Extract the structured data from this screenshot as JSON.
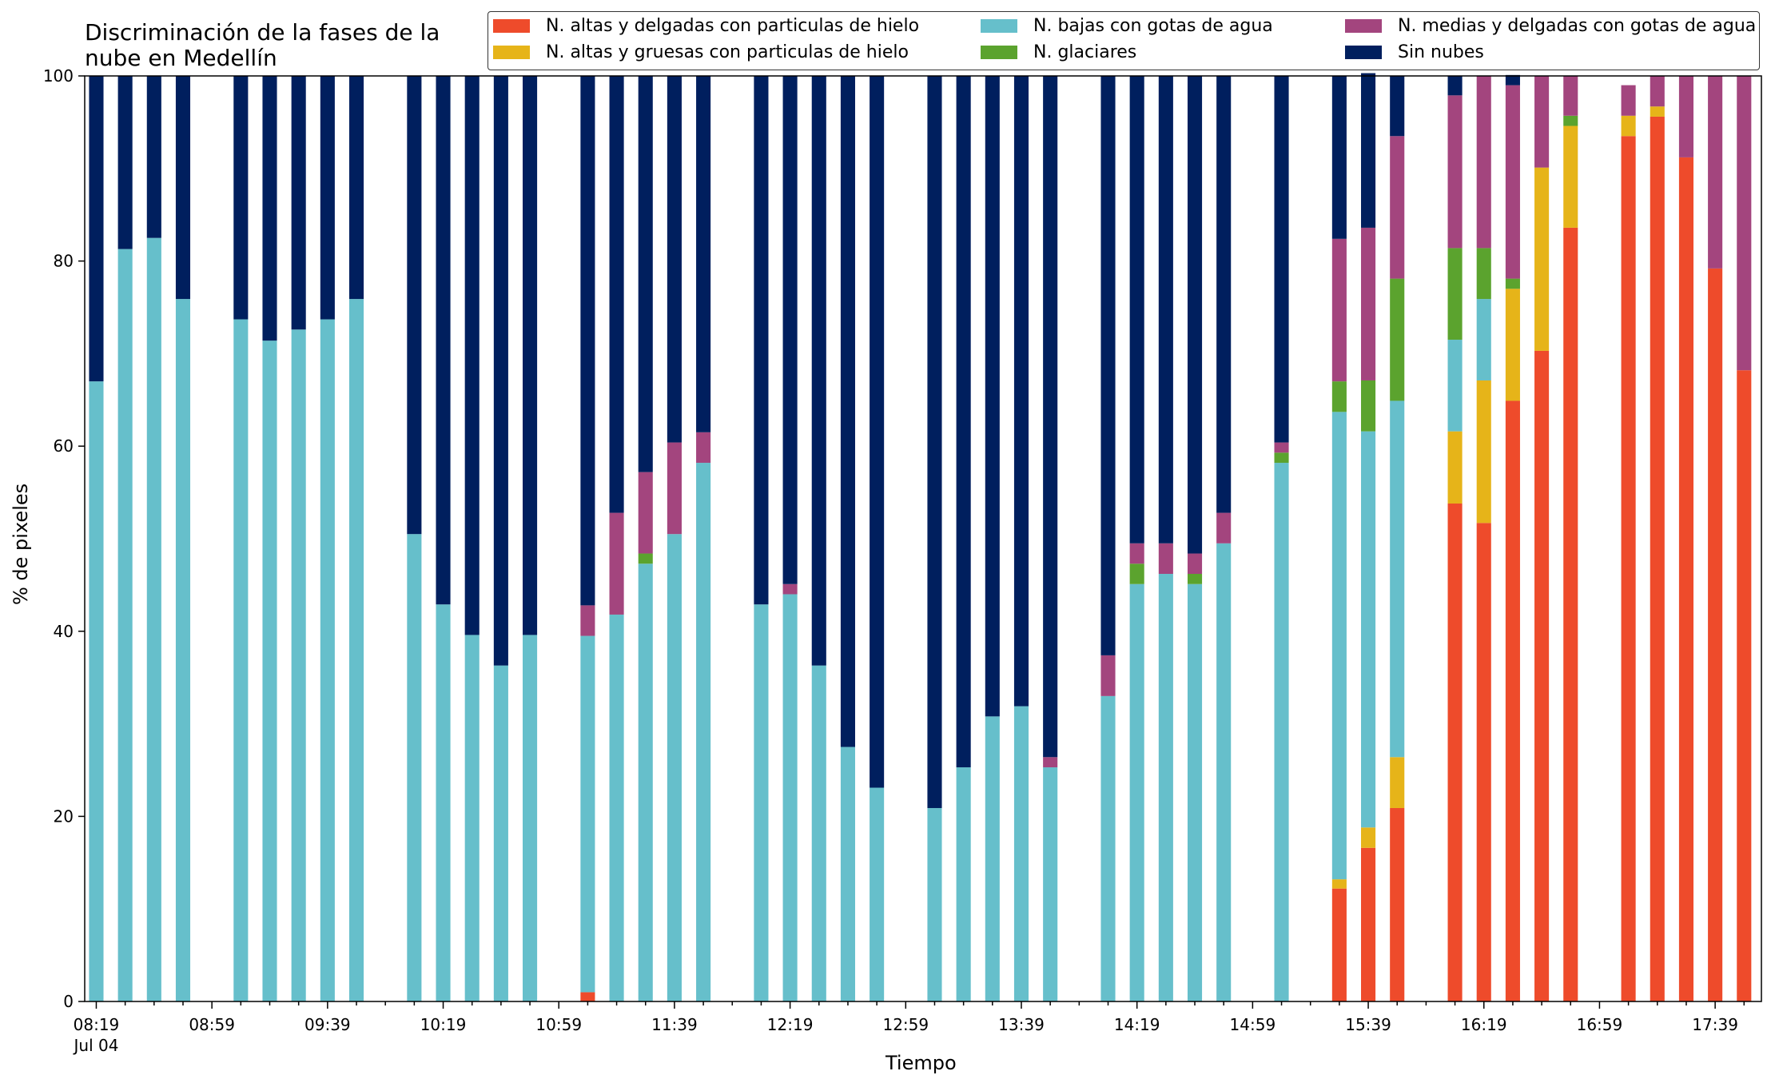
{
  "chart_data": {
    "type": "bar",
    "stacked": true,
    "title": "Discriminación de la fases de la nube en Medellín",
    "title_lines": [
      "Discriminación de la fases de la",
      "nube en Medellín"
    ],
    "xlabel": "Tiempo",
    "ylabel": "% de pixeles",
    "ylim": [
      0,
      100
    ],
    "yticks": [
      "0",
      "20",
      "40",
      "60",
      "80",
      "100"
    ],
    "xlim": [
      "08:15",
      "17:55"
    ],
    "x_tick_labels": [
      "08:19",
      "08:59",
      "09:39",
      "10:19",
      "10:59",
      "11:39",
      "12:19",
      "12:59",
      "13:39",
      "14:19",
      "14:59",
      "15:39",
      "16:19",
      "16:59",
      "17:39"
    ],
    "x_date_label": "Jul 04",
    "minor_tick_interval_min": 10,
    "bar_width_min": 5,
    "grid": false,
    "legend_position": "top",
    "x": [
      "08:19",
      "08:29",
      "08:39",
      "08:49",
      "09:09",
      "09:19",
      "09:29",
      "09:39",
      "09:49",
      "10:09",
      "10:19",
      "10:29",
      "10:39",
      "10:49",
      "11:09",
      "11:19",
      "11:29",
      "11:39",
      "11:49",
      "12:09",
      "12:19",
      "12:29",
      "12:39",
      "12:49",
      "13:09",
      "13:19",
      "13:29",
      "13:39",
      "13:49",
      "14:09",
      "14:19",
      "14:29",
      "14:39",
      "14:49",
      "15:09",
      "15:29",
      "15:39",
      "15:49",
      "16:09",
      "16:19",
      "16:29",
      "16:39",
      "16:49",
      "17:09",
      "17:19",
      "17:29",
      "17:39",
      "17:49"
    ],
    "series": [
      {
        "name": "N. altas y delgadas con particulas de hielo",
        "color": "#EE4B2B",
        "values": [
          0,
          0,
          0,
          0,
          0,
          0,
          0,
          0,
          0,
          0,
          0,
          0,
          0,
          0,
          1,
          0,
          0,
          0,
          0,
          0,
          0,
          0,
          0,
          0,
          0,
          0,
          0,
          0,
          0,
          0,
          0,
          0,
          0,
          0,
          0,
          12.2,
          16.6,
          20.9,
          53.8,
          51.7,
          64.9,
          70.3,
          83.6,
          93.5,
          95.6,
          91.2,
          79.2,
          68.2
        ]
      },
      {
        "name": "N. altas y gruesas con particulas de hielo",
        "color": "#E6B419",
        "values": [
          0,
          0,
          0,
          0,
          0,
          0,
          0,
          0,
          0,
          0,
          0,
          0,
          0,
          0,
          0,
          0,
          0,
          0,
          0,
          0,
          0,
          0,
          0,
          0,
          0,
          0,
          0,
          0,
          0,
          0,
          0,
          0,
          0,
          0,
          0,
          1,
          2.2,
          5.5,
          7.8,
          15.4,
          12.1,
          19.8,
          11,
          2.2,
          1.1,
          0,
          0,
          0
        ]
      },
      {
        "name": "N. bajas con gotas de agua",
        "color": "#66BFCB",
        "values": [
          67,
          81.3,
          82.5,
          75.9,
          73.7,
          71.4,
          72.6,
          73.7,
          75.9,
          50.5,
          42.9,
          39.6,
          36.3,
          39.6,
          38.5,
          41.8,
          47.3,
          50.5,
          58.2,
          42.9,
          44,
          36.3,
          27.5,
          23.1,
          20.9,
          25.3,
          30.8,
          31.9,
          25.3,
          33,
          45.1,
          46.2,
          45.1,
          49.5,
          58.2,
          50.5,
          42.8,
          38.5,
          9.9,
          8.8,
          0,
          0,
          0,
          0,
          0,
          0,
          0,
          0
        ]
      },
      {
        "name": "N. glaciares",
        "color": "#5BA32E",
        "values": [
          0,
          0,
          0,
          0,
          0,
          0,
          0,
          0,
          0,
          0,
          0,
          0,
          0,
          0,
          0,
          0,
          1.1,
          0,
          0,
          0,
          0,
          0,
          0,
          0,
          0,
          0,
          0,
          0,
          0,
          0,
          2.2,
          0,
          1.1,
          0,
          1.1,
          3.3,
          5.5,
          13.2,
          9.9,
          5.5,
          1.1,
          0,
          1.1,
          0,
          0,
          0,
          0,
          0
        ]
      },
      {
        "name": "N. medias y delgadas con gotas de agua",
        "color": "#A3457E",
        "values": [
          0,
          0,
          0,
          0,
          0,
          0,
          0,
          0,
          0,
          0,
          0,
          0,
          0,
          0,
          3.3,
          11,
          8.8,
          9.9,
          3.3,
          0,
          1.1,
          0,
          0,
          0,
          0,
          0,
          0,
          0,
          1.1,
          4.4,
          2.2,
          3.3,
          2.2,
          3.3,
          1.1,
          15.4,
          16.5,
          15.4,
          16.5,
          18.6,
          20.9,
          9.9,
          4.3,
          3.3,
          3.3,
          8.8,
          20.8,
          31.8
        ]
      },
      {
        "name": "Sin nubes",
        "color": "#001F5E",
        "values": [
          33,
          18.7,
          17.5,
          24.1,
          26.3,
          28.6,
          27.4,
          26.3,
          24.1,
          49.5,
          57.1,
          60.4,
          63.7,
          60.4,
          57.2,
          47.2,
          42.8,
          39.6,
          38.5,
          57.1,
          54.9,
          63.7,
          72.5,
          76.9,
          79.1,
          74.7,
          69.2,
          68.1,
          73.6,
          62.6,
          50.5,
          50.5,
          51.6,
          47.2,
          39.6,
          17.6,
          16.7,
          6.5,
          2.1,
          0,
          1.1,
          0,
          0,
          0,
          0,
          0,
          0,
          0
        ]
      }
    ]
  }
}
